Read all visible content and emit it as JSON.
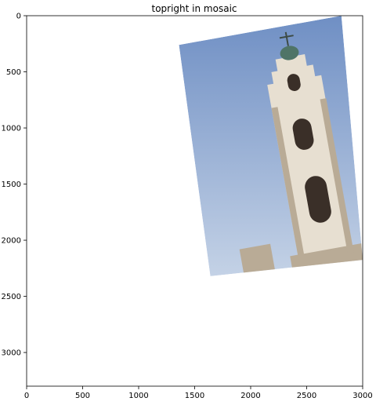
{
  "chart_data": {
    "type": "image",
    "title": "topright in mosaic",
    "xlabel": "",
    "ylabel": "",
    "xlim": [
      0,
      3000
    ],
    "ylim": [
      3300,
      0
    ],
    "x_ticks": [
      0,
      500,
      1000,
      1500,
      2000,
      2500,
      3000
    ],
    "y_ticks": [
      0,
      500,
      1000,
      1500,
      2000,
      2500,
      3000
    ],
    "grid": false,
    "image_content": "rotated photo of an ornate white bell tower against a blue sky",
    "image_corners": [
      [
        1360,
        260
      ],
      [
        2810,
        0
      ],
      [
        3000,
        2175
      ],
      [
        1640,
        2320
      ]
    ],
    "colors": {
      "sky_top": "#6f8fc4",
      "sky_bottom": "#c4d2e6",
      "tower": "#e7dfd1",
      "tower_shadow": "#b9ab96",
      "dome": "#4f7467"
    }
  }
}
